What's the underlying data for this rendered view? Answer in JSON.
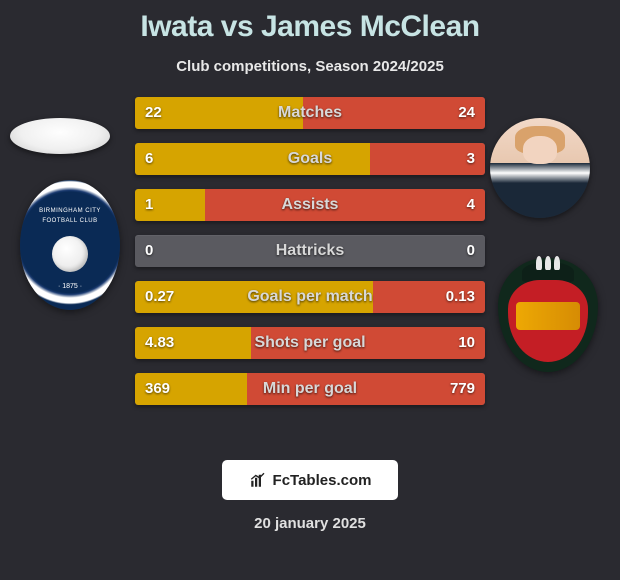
{
  "title_left": "Iwata",
  "title_vs": " vs ",
  "title_right": "James McClean",
  "subtitle": "Club competitions, Season 2024/2025",
  "date": "20 january 2025",
  "badge_text": "FcTables.com",
  "colors": {
    "left_bar": "#d6a400",
    "right_bar": "#d04a35",
    "track": "#5a5a60",
    "background": "#2a2a30",
    "title": "#c7e4e4"
  },
  "crest1": {
    "text_top": "BIRMINGHAM CITY",
    "text_mid": "FOOTBALL CLUB",
    "year": "· 1875 ·"
  },
  "stats": [
    {
      "label": "Matches",
      "left_val": "22",
      "right_val": "24",
      "left_pct": 48,
      "right_pct": 52
    },
    {
      "label": "Goals",
      "left_val": "6",
      "right_val": "3",
      "left_pct": 67,
      "right_pct": 33
    },
    {
      "label": "Assists",
      "left_val": "1",
      "right_val": "4",
      "left_pct": 20,
      "right_pct": 80
    },
    {
      "label": "Hattricks",
      "left_val": "0",
      "right_val": "0",
      "left_pct": 0,
      "right_pct": 0
    },
    {
      "label": "Goals per match",
      "left_val": "0.27",
      "right_val": "0.13",
      "left_pct": 68,
      "right_pct": 32
    },
    {
      "label": "Shots per goal",
      "left_val": "4.83",
      "right_val": "10",
      "left_pct": 33,
      "right_pct": 67
    },
    {
      "label": "Min per goal",
      "left_val": "369",
      "right_val": "779",
      "left_pct": 32,
      "right_pct": 68
    }
  ]
}
